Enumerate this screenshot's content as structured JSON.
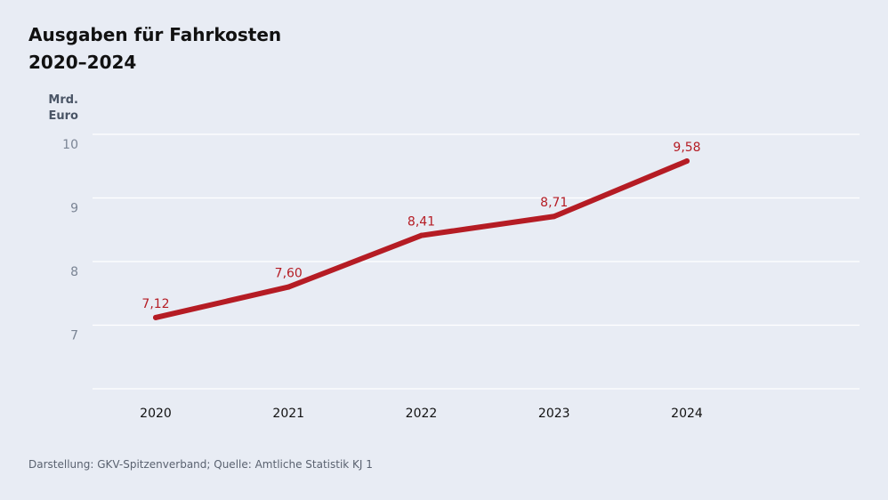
{
  "title_line1": "Ausgaben für Fahrkosten",
  "title_line2": "2020–2024",
  "unit_line1": "Mrd.",
  "unit_line2": "Euro",
  "source": "Darstellung: GKV-Spitzenverband; Quelle: Amtliche Statistik KJ 1",
  "line_color": "#b51c24",
  "chart_data": {
    "type": "line",
    "title": "Ausgaben für Fahrkosten 2020–2024",
    "ylabel": "Mrd. Euro",
    "xlabel": "",
    "categories": [
      "2020",
      "2021",
      "2022",
      "2023",
      "2024"
    ],
    "values": [
      7.12,
      7.6,
      8.41,
      8.71,
      9.58
    ],
    "value_labels": [
      "7,12",
      "7,60",
      "8,41",
      "8,71",
      "9,58"
    ],
    "yticks": [
      7,
      8,
      9,
      10
    ],
    "ylim": [
      6,
      10
    ],
    "grid": true
  }
}
